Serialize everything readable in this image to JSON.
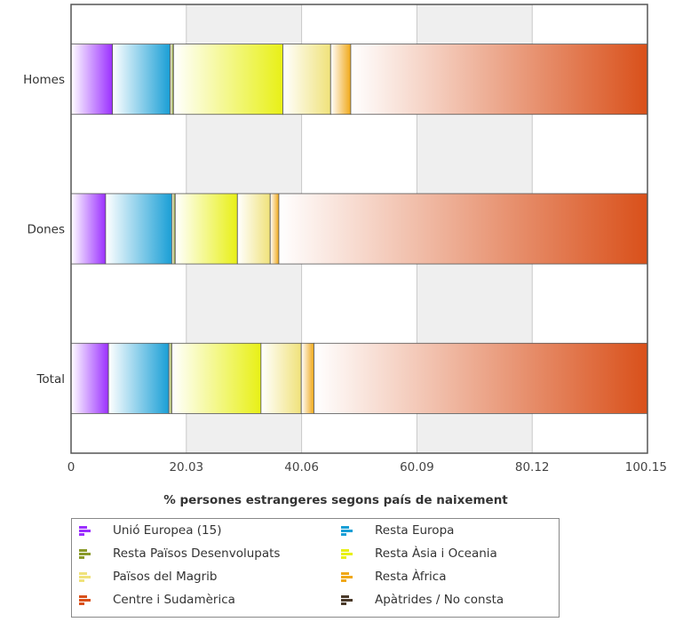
{
  "chart_data": {
    "type": "bar",
    "orientation": "horizontal",
    "stacked": true,
    "categories": [
      "Homes",
      "Dones",
      "Total"
    ],
    "xlabel": "% persones estrangeres segons país de naixement",
    "xlim": [
      0,
      100.15
    ],
    "xticks": [
      "0",
      "20.03",
      "40.06",
      "60.09",
      "80.12",
      "100.15"
    ],
    "series": [
      {
        "name": "Unió Europea (15)",
        "color": "#9b30ff",
        "values": [
          7.2,
          6.0,
          6.5
        ]
      },
      {
        "name": "Resta Europa",
        "color": "#1a9fd6",
        "values": [
          10.0,
          11.5,
          10.5
        ]
      },
      {
        "name": "Resta Països Desenvolupats",
        "color": "#8a9a2a",
        "values": [
          0.6,
          0.6,
          0.5
        ]
      },
      {
        "name": "Resta Àsia i Oceania",
        "color": "#e8f016",
        "values": [
          19.0,
          10.8,
          15.5
        ]
      },
      {
        "name": "Països del Magrib",
        "color": "#f0e27a",
        "values": [
          8.3,
          5.7,
          7.0
        ]
      },
      {
        "name": "Resta Àfrica",
        "color": "#f0a818",
        "values": [
          3.5,
          1.5,
          2.2
        ]
      },
      {
        "name": "Centre i Sudamèrica",
        "color": "#d9501a",
        "values": [
          51.55,
          64.05,
          57.95
        ]
      },
      {
        "name": "Apàtrides / No consta",
        "color": "#4a3a2a",
        "values": [
          0.0,
          0.0,
          0.0
        ]
      }
    ],
    "grid": true,
    "legend_position": "bottom"
  }
}
